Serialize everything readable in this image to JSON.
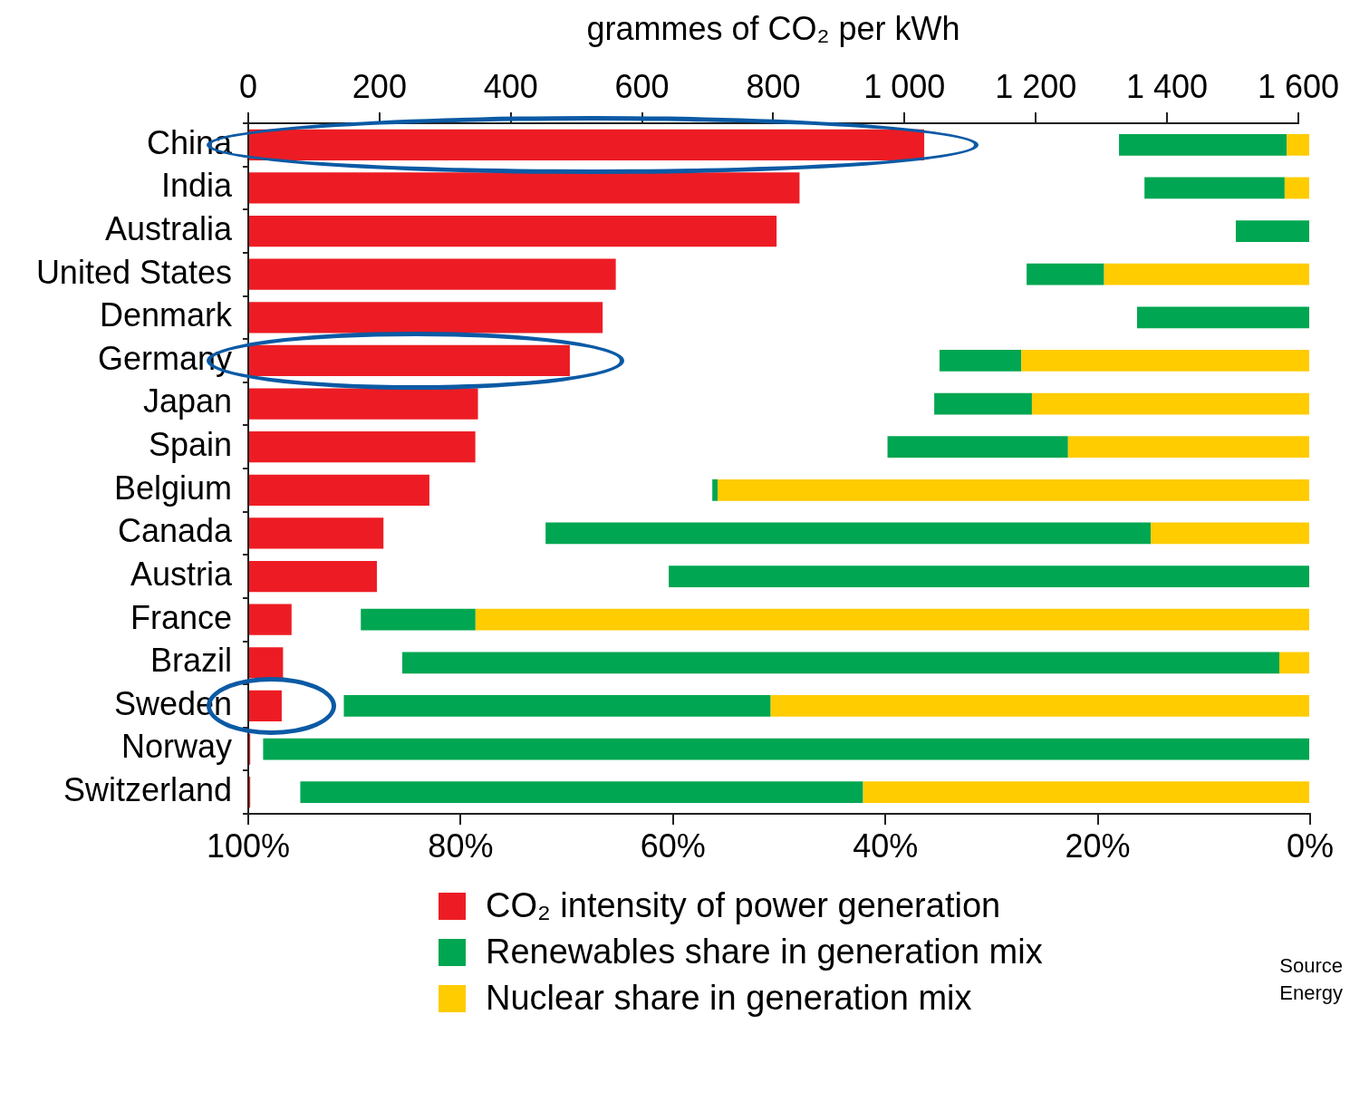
{
  "chart_data": [
    {
      "type": "bar",
      "orientation": "horizontal",
      "x2label": "grammes of CO₂ per kWh",
      "categories": [
        "China",
        "India",
        "Australia",
        "United States",
        "Denmark",
        "Germany",
        "Japan",
        "Spain",
        "Belgium",
        "Canada",
        "Austria",
        "France",
        "Brazil",
        "Sweden",
        "Norway",
        "Switzerland"
      ],
      "series": [
        {
          "name": "CO₂ intensity of power generation",
          "color": "#ed1c24",
          "axis": "x2",
          "values": [
            1030,
            840,
            805,
            560,
            540,
            490,
            350,
            346,
            276,
            206,
            196,
            66,
            53,
            51,
            3,
            3
          ]
        }
      ],
      "x2lim": [
        0,
        1600
      ],
      "x2ticks": [
        0,
        200,
        400,
        600,
        800,
        {
          "value": 1000,
          "label": "1 000"
        },
        {
          "value": 1200,
          "label": "1 200"
        },
        {
          "value": 1400,
          "label": "1 400"
        },
        {
          "value": 1600,
          "label": "1 600"
        }
      ],
      "grid": false,
      "legend": "bottom"
    },
    {
      "type": "bar",
      "orientation": "horizontal",
      "stacked": true,
      "tick_labels": "x",
      "categories": [
        null,
        null,
        null,
        null,
        null,
        null,
        null,
        null,
        null,
        null,
        null,
        null,
        null,
        null,
        null,
        null
      ],
      "series": [
        {
          "name": "Nuclear share in generation mix",
          "color": "#ffcc00",
          "values": [
            2.2,
            2.4,
            0,
            19.4,
            0,
            27.2,
            26.2,
            22.8,
            55.8,
            15.0,
            0,
            78.6,
            2.9,
            50.8,
            0,
            42.1
          ]
        },
        {
          "name": "Renewables share in generation mix",
          "color": "#00a651",
          "values": [
            15.8,
            13.2,
            7.0,
            7.3,
            16.3,
            7.7,
            9.2,
            17.0,
            0.5,
            57.0,
            60.4,
            10.8,
            82.6,
            40.2,
            98.6,
            53.0
          ]
        }
      ],
      "xlim": [
        100,
        0
      ],
      "xticks": [
        {
          "value": 100,
          "label": "100%"
        },
        {
          "value": 80,
          "label": "80%"
        },
        {
          "value": 60,
          "label": "60%"
        },
        {
          "value": 40,
          "label": "40%"
        },
        {
          "value": 20,
          "label": "20%"
        },
        {
          "value": 0,
          "label": "0%"
        }
      ],
      "grid": false,
      "legend": "bottom",
      "annotations": [
        "Source",
        "Energy"
      ]
    }
  ]
}
